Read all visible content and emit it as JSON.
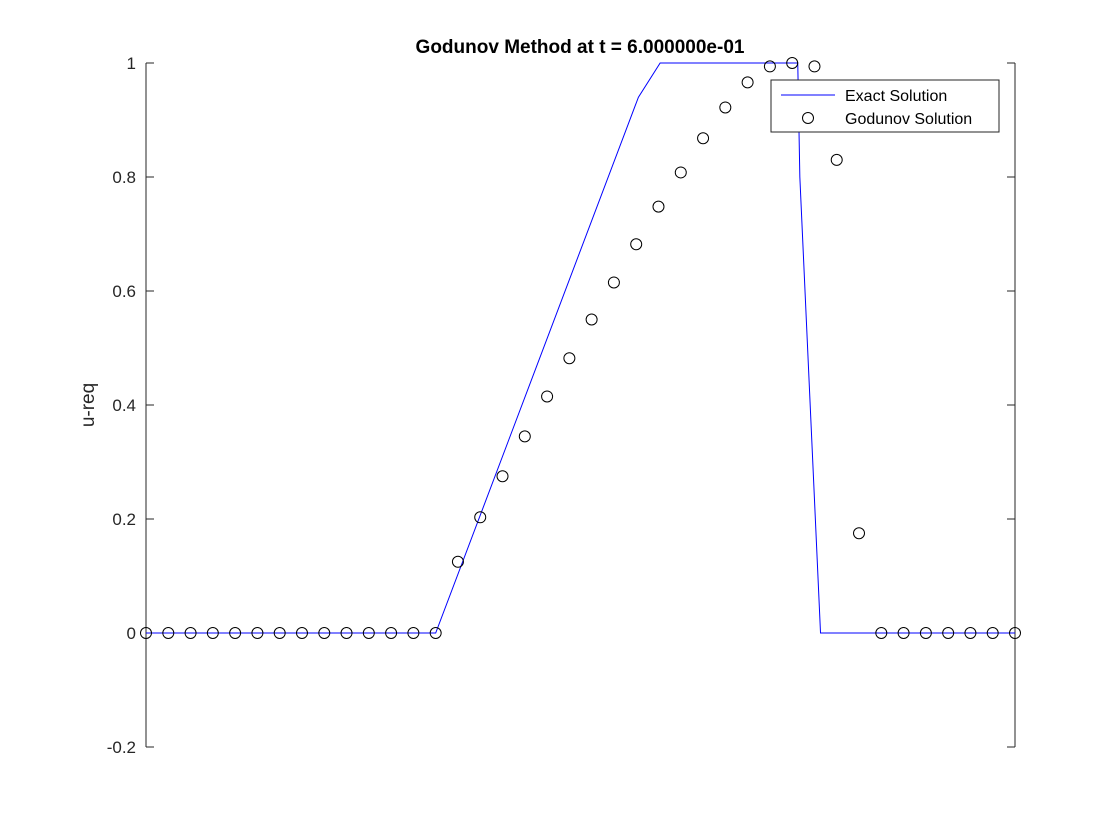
{
  "chart_data": {
    "type": "line",
    "title": "Godunov Method at t = 6.000000e-01",
    "xlabel": "",
    "ylabel": "u-req",
    "ylim": [
      -0.2,
      1
    ],
    "xlim": [
      -1,
      1
    ],
    "y_ticks": [
      "-0.2",
      "0",
      "0.2",
      "0.4",
      "0.6",
      "0.8",
      "1"
    ],
    "grid": false,
    "legend_position": "top-right",
    "series": [
      {
        "name": "Exact Solution",
        "style": "line",
        "color": "#0000ff",
        "x": [
          -1.0,
          -0.3333,
          0.1333,
          0.1833,
          0.5,
          0.5048,
          0.5524,
          1.0
        ],
        "y": [
          0.0,
          0.0,
          0.94,
          1.0,
          1.0,
          0.8,
          0.0,
          0.0
        ]
      },
      {
        "name": "Godunov Solution",
        "style": "marker",
        "marker": "circle",
        "color": "#000000",
        "x": [
          -1.0,
          -0.9487,
          -0.8974,
          -0.8462,
          -0.7949,
          -0.7436,
          -0.6923,
          -0.641,
          -0.5897,
          -0.5385,
          -0.4872,
          -0.4359,
          -0.3846,
          -0.3333,
          -0.2821,
          -0.2308,
          -0.1795,
          -0.1282,
          -0.0769,
          -0.0256,
          0.0256,
          0.0769,
          0.1282,
          0.1795,
          0.2308,
          0.2821,
          0.3333,
          0.3846,
          0.4359,
          0.4872,
          0.5385,
          0.5897,
          0.641,
          0.6923,
          0.7436,
          0.7949,
          0.8462,
          0.8974,
          0.9487,
          1.0
        ],
        "y": [
          0,
          0,
          0,
          0,
          0,
          0,
          0,
          0,
          0,
          0,
          0,
          0,
          0,
          0,
          0.125,
          0.203,
          0.275,
          0.345,
          0.415,
          0.482,
          0.55,
          0.615,
          0.682,
          0.748,
          0.808,
          0.868,
          0.922,
          0.966,
          0.994,
          1.0,
          0.994,
          0.83,
          0.175,
          0,
          0,
          0,
          0,
          0,
          0,
          0
        ]
      }
    ]
  }
}
